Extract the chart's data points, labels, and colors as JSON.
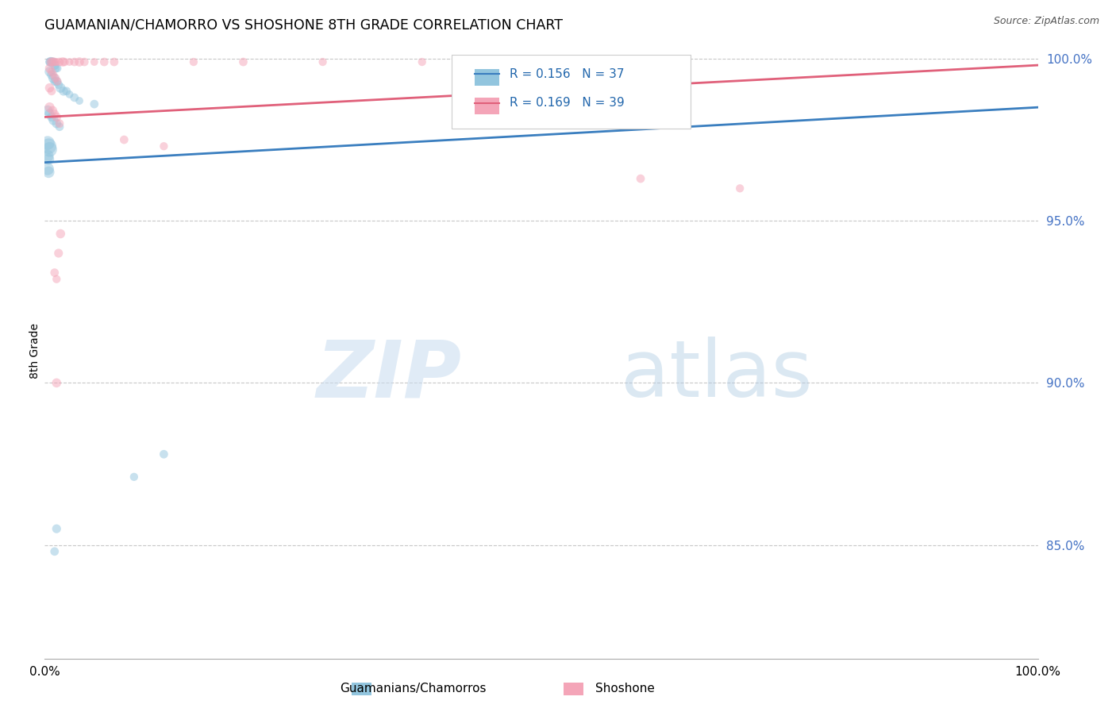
{
  "title": "GUAMANIAN/CHAMORRO VS SHOSHONE 8TH GRADE CORRELATION CHART",
  "source": "Source: ZipAtlas.com",
  "ylabel": "8th Grade",
  "legend_blue_r": "R = 0.156",
  "legend_blue_n": "N = 37",
  "legend_pink_r": "R = 0.169",
  "legend_pink_n": "N = 39",
  "legend_blue_label": "Guamanians/Chamorros",
  "legend_pink_label": "Shoshone",
  "blue_color": "#92c5de",
  "pink_color": "#f4a5b8",
  "blue_line_color": "#3a7ebf",
  "pink_line_color": "#e0607a",
  "blue_points": [
    [
      0.005,
      0.999
    ],
    [
      0.006,
      0.999
    ],
    [
      0.007,
      0.999
    ],
    [
      0.009,
      0.999
    ],
    [
      0.01,
      0.998
    ],
    [
      0.011,
      0.997
    ],
    [
      0.013,
      0.997
    ],
    [
      0.005,
      0.996
    ],
    [
      0.007,
      0.995
    ],
    [
      0.009,
      0.994
    ],
    [
      0.01,
      0.993
    ],
    [
      0.012,
      0.993
    ],
    [
      0.014,
      0.992
    ],
    [
      0.016,
      0.991
    ],
    [
      0.019,
      0.99
    ],
    [
      0.022,
      0.99
    ],
    [
      0.025,
      0.989
    ],
    [
      0.03,
      0.988
    ],
    [
      0.035,
      0.987
    ],
    [
      0.05,
      0.986
    ],
    [
      0.003,
      0.984
    ],
    [
      0.005,
      0.983
    ],
    [
      0.007,
      0.982
    ],
    [
      0.009,
      0.981
    ],
    [
      0.012,
      0.98
    ],
    [
      0.015,
      0.979
    ],
    [
      0.003,
      0.974
    ],
    [
      0.004,
      0.973
    ],
    [
      0.005,
      0.972
    ],
    [
      0.003,
      0.97
    ],
    [
      0.004,
      0.969
    ],
    [
      0.003,
      0.966
    ],
    [
      0.004,
      0.965
    ],
    [
      0.12,
      0.878
    ],
    [
      0.09,
      0.871
    ],
    [
      0.012,
      0.855
    ],
    [
      0.01,
      0.848
    ]
  ],
  "blue_sizes": [
    60,
    80,
    70,
    60,
    70,
    60,
    50,
    80,
    70,
    90,
    60,
    70,
    60,
    80,
    70,
    60,
    50,
    60,
    50,
    60,
    90,
    80,
    70,
    80,
    70,
    60,
    160,
    200,
    180,
    120,
    100,
    130,
    110,
    60,
    55,
    65,
    60
  ],
  "pink_points": [
    [
      0.006,
      0.999
    ],
    [
      0.008,
      0.999
    ],
    [
      0.01,
      0.999
    ],
    [
      0.012,
      0.999
    ],
    [
      0.015,
      0.999
    ],
    [
      0.018,
      0.999
    ],
    [
      0.02,
      0.999
    ],
    [
      0.025,
      0.999
    ],
    [
      0.03,
      0.999
    ],
    [
      0.035,
      0.999
    ],
    [
      0.04,
      0.999
    ],
    [
      0.05,
      0.999
    ],
    [
      0.06,
      0.999
    ],
    [
      0.07,
      0.999
    ],
    [
      0.15,
      0.999
    ],
    [
      0.2,
      0.999
    ],
    [
      0.28,
      0.999
    ],
    [
      0.38,
      0.999
    ],
    [
      0.005,
      0.997
    ],
    [
      0.007,
      0.996
    ],
    [
      0.009,
      0.995
    ],
    [
      0.011,
      0.994
    ],
    [
      0.013,
      0.993
    ],
    [
      0.005,
      0.991
    ],
    [
      0.007,
      0.99
    ],
    [
      0.6,
      0.963
    ],
    [
      0.7,
      0.96
    ],
    [
      0.005,
      0.985
    ],
    [
      0.008,
      0.984
    ],
    [
      0.01,
      0.983
    ],
    [
      0.012,
      0.982
    ],
    [
      0.015,
      0.98
    ],
    [
      0.08,
      0.975
    ],
    [
      0.12,
      0.973
    ],
    [
      0.016,
      0.946
    ],
    [
      0.014,
      0.94
    ],
    [
      0.01,
      0.934
    ],
    [
      0.012,
      0.932
    ],
    [
      0.012,
      0.9
    ]
  ],
  "pink_sizes": [
    60,
    70,
    60,
    50,
    60,
    70,
    60,
    50,
    60,
    70,
    60,
    50,
    60,
    60,
    55,
    60,
    55,
    55,
    70,
    60,
    50,
    60,
    55,
    70,
    60,
    60,
    55,
    80,
    70,
    60,
    70,
    60,
    60,
    55,
    70,
    65,
    60,
    55,
    70
  ],
  "blue_trendline": [
    0.0,
    1.0,
    0.968,
    0.985
  ],
  "pink_trendline": [
    0.0,
    1.0,
    0.982,
    0.998
  ],
  "ytick_positions": [
    0.85,
    0.9,
    0.95,
    1.0
  ],
  "ytick_labels": [
    "85.0%",
    "90.0%",
    "95.0%",
    "100.0%"
  ],
  "ylim": [
    0.815,
    1.005
  ],
  "xlim": [
    0.0,
    1.0
  ]
}
